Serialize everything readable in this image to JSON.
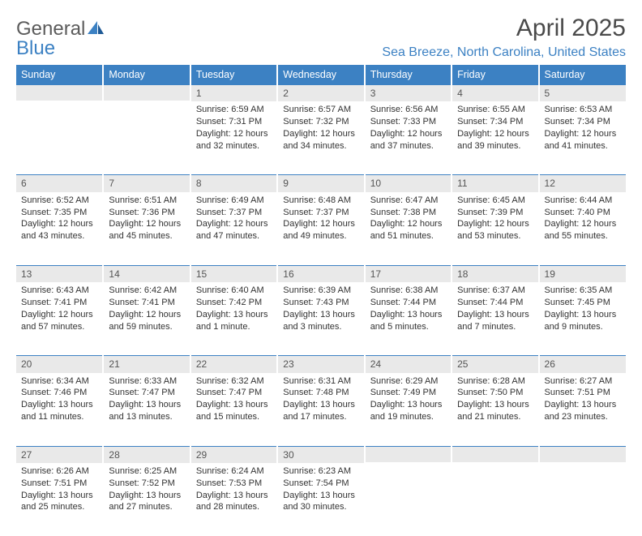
{
  "brand": {
    "name_part1": "General",
    "name_part2": "Blue",
    "text_color": "#5b5b5b",
    "blue_color": "#3c81c3"
  },
  "title": "April 2025",
  "location": "Sea Breeze, North Carolina, United States",
  "styling": {
    "header_bg": "#3c81c3",
    "header_text": "#ffffff",
    "daynum_bg": "#e9e9e9",
    "daynum_border_top": "#3c81c3",
    "body_text": "#333333",
    "title_color": "#4a4a4a",
    "location_color": "#3c81c3",
    "page_bg": "#ffffff",
    "title_fontsize": 30,
    "location_fontsize": 16,
    "header_fontsize": 12.5,
    "cell_fontsize": 11
  },
  "columns": [
    "Sunday",
    "Monday",
    "Tuesday",
    "Wednesday",
    "Thursday",
    "Friday",
    "Saturday"
  ],
  "weeks": [
    [
      null,
      null,
      {
        "n": "1",
        "sunrise": "6:59 AM",
        "sunset": "7:31 PM",
        "daylight": "12 hours and 32 minutes."
      },
      {
        "n": "2",
        "sunrise": "6:57 AM",
        "sunset": "7:32 PM",
        "daylight": "12 hours and 34 minutes."
      },
      {
        "n": "3",
        "sunrise": "6:56 AM",
        "sunset": "7:33 PM",
        "daylight": "12 hours and 37 minutes."
      },
      {
        "n": "4",
        "sunrise": "6:55 AM",
        "sunset": "7:34 PM",
        "daylight": "12 hours and 39 minutes."
      },
      {
        "n": "5",
        "sunrise": "6:53 AM",
        "sunset": "7:34 PM",
        "daylight": "12 hours and 41 minutes."
      }
    ],
    [
      {
        "n": "6",
        "sunrise": "6:52 AM",
        "sunset": "7:35 PM",
        "daylight": "12 hours and 43 minutes."
      },
      {
        "n": "7",
        "sunrise": "6:51 AM",
        "sunset": "7:36 PM",
        "daylight": "12 hours and 45 minutes."
      },
      {
        "n": "8",
        "sunrise": "6:49 AM",
        "sunset": "7:37 PM",
        "daylight": "12 hours and 47 minutes."
      },
      {
        "n": "9",
        "sunrise": "6:48 AM",
        "sunset": "7:37 PM",
        "daylight": "12 hours and 49 minutes."
      },
      {
        "n": "10",
        "sunrise": "6:47 AM",
        "sunset": "7:38 PM",
        "daylight": "12 hours and 51 minutes."
      },
      {
        "n": "11",
        "sunrise": "6:45 AM",
        "sunset": "7:39 PM",
        "daylight": "12 hours and 53 minutes."
      },
      {
        "n": "12",
        "sunrise": "6:44 AM",
        "sunset": "7:40 PM",
        "daylight": "12 hours and 55 minutes."
      }
    ],
    [
      {
        "n": "13",
        "sunrise": "6:43 AM",
        "sunset": "7:41 PM",
        "daylight": "12 hours and 57 minutes."
      },
      {
        "n": "14",
        "sunrise": "6:42 AM",
        "sunset": "7:41 PM",
        "daylight": "12 hours and 59 minutes."
      },
      {
        "n": "15",
        "sunrise": "6:40 AM",
        "sunset": "7:42 PM",
        "daylight": "13 hours and 1 minute."
      },
      {
        "n": "16",
        "sunrise": "6:39 AM",
        "sunset": "7:43 PM",
        "daylight": "13 hours and 3 minutes."
      },
      {
        "n": "17",
        "sunrise": "6:38 AM",
        "sunset": "7:44 PM",
        "daylight": "13 hours and 5 minutes."
      },
      {
        "n": "18",
        "sunrise": "6:37 AM",
        "sunset": "7:44 PM",
        "daylight": "13 hours and 7 minutes."
      },
      {
        "n": "19",
        "sunrise": "6:35 AM",
        "sunset": "7:45 PM",
        "daylight": "13 hours and 9 minutes."
      }
    ],
    [
      {
        "n": "20",
        "sunrise": "6:34 AM",
        "sunset": "7:46 PM",
        "daylight": "13 hours and 11 minutes."
      },
      {
        "n": "21",
        "sunrise": "6:33 AM",
        "sunset": "7:47 PM",
        "daylight": "13 hours and 13 minutes."
      },
      {
        "n": "22",
        "sunrise": "6:32 AM",
        "sunset": "7:47 PM",
        "daylight": "13 hours and 15 minutes."
      },
      {
        "n": "23",
        "sunrise": "6:31 AM",
        "sunset": "7:48 PM",
        "daylight": "13 hours and 17 minutes."
      },
      {
        "n": "24",
        "sunrise": "6:29 AM",
        "sunset": "7:49 PM",
        "daylight": "13 hours and 19 minutes."
      },
      {
        "n": "25",
        "sunrise": "6:28 AM",
        "sunset": "7:50 PM",
        "daylight": "13 hours and 21 minutes."
      },
      {
        "n": "26",
        "sunrise": "6:27 AM",
        "sunset": "7:51 PM",
        "daylight": "13 hours and 23 minutes."
      }
    ],
    [
      {
        "n": "27",
        "sunrise": "6:26 AM",
        "sunset": "7:51 PM",
        "daylight": "13 hours and 25 minutes."
      },
      {
        "n": "28",
        "sunrise": "6:25 AM",
        "sunset": "7:52 PM",
        "daylight": "13 hours and 27 minutes."
      },
      {
        "n": "29",
        "sunrise": "6:24 AM",
        "sunset": "7:53 PM",
        "daylight": "13 hours and 28 minutes."
      },
      {
        "n": "30",
        "sunrise": "6:23 AM",
        "sunset": "7:54 PM",
        "daylight": "13 hours and 30 minutes."
      },
      null,
      null,
      null
    ]
  ],
  "labels": {
    "sunrise_prefix": "Sunrise: ",
    "sunset_prefix": "Sunset: ",
    "daylight_prefix": "Daylight: "
  }
}
